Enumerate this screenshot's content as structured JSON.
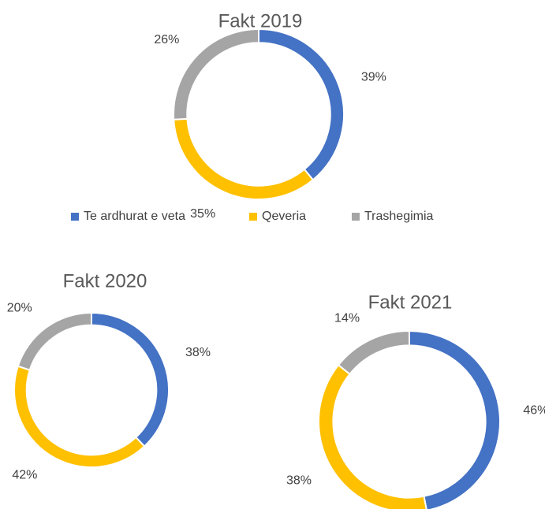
{
  "chart_data": [
    {
      "type": "donut",
      "title": "Fakt 2019",
      "categories": [
        "Te ardhurat e veta",
        "Qeveria",
        "Trashegimia"
      ],
      "values": [
        39,
        35,
        26
      ],
      "value_labels": [
        "39%",
        "35%",
        "26%"
      ],
      "colors": [
        "#4472c4",
        "#ffc000",
        "#a5a5a5"
      ],
      "legend": "bottom"
    },
    {
      "type": "donut",
      "title": "Fakt 2020",
      "categories": [
        "Te ardhurat e veta",
        "Qeveria",
        "Trashegimia"
      ],
      "values": [
        38,
        42,
        20
      ],
      "value_labels": [
        "38%",
        "42%",
        "20%"
      ],
      "colors": [
        "#4472c4",
        "#ffc000",
        "#a5a5a5"
      ]
    },
    {
      "type": "donut",
      "title": "Fakt 2021",
      "categories": [
        "Te ardhurat e veta",
        "Qeveria",
        "Trashegimia"
      ],
      "values": [
        46,
        38,
        14
      ],
      "value_labels": [
        "46%",
        "38%",
        "14%"
      ],
      "colors": [
        "#4472c4",
        "#ffc000",
        "#a5a5a5"
      ]
    }
  ]
}
